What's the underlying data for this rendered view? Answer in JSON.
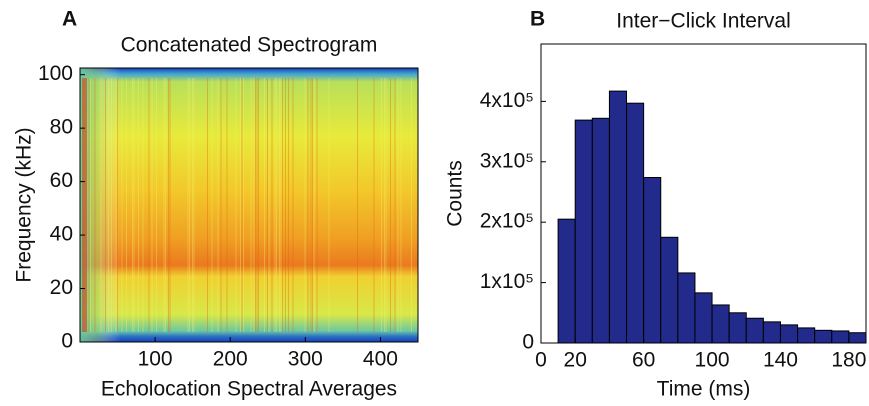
{
  "chart_data": [
    {
      "type": "spectrogram",
      "panel": "A",
      "title": "Concatenated Spectrogram",
      "xlabel": "Echolocation Spectral Averages",
      "ylabel": "Frequency (kHz)",
      "xlim": [
        0,
        450
      ],
      "xticks": [
        100,
        200,
        300,
        400
      ],
      "ylim": [
        0,
        102.5
      ],
      "yticks": [
        0,
        20,
        40,
        60,
        80,
        100
      ]
    },
    {
      "type": "histogram",
      "panel": "B",
      "title": "Inter−Click Interval",
      "xlabel": "Time (ms)",
      "ylabel": "Counts",
      "color": "#222a8c",
      "bins": [
        10,
        20,
        30,
        40,
        50,
        60,
        70,
        80,
        90,
        100,
        110,
        120,
        130,
        140,
        150,
        160,
        170,
        180,
        190
      ],
      "counts": [
        205000,
        369000,
        372000,
        417000,
        397000,
        274000,
        175000,
        116000,
        83000,
        63000,
        50000,
        41000,
        35000,
        30000,
        25000,
        21000,
        20000,
        17000
      ],
      "xlim": [
        0,
        190
      ],
      "xticks": [
        0,
        20,
        60,
        100,
        140,
        180
      ],
      "ylim": [
        0,
        495000
      ],
      "yticks": [
        0,
        {
          "value": 100000,
          "label": "1x10⁵"
        },
        {
          "value": 200000,
          "label": "2x10⁵"
        },
        {
          "value": 300000,
          "label": "3x10⁵"
        },
        {
          "value": 400000,
          "label": "4x10⁵"
        }
      ]
    }
  ]
}
